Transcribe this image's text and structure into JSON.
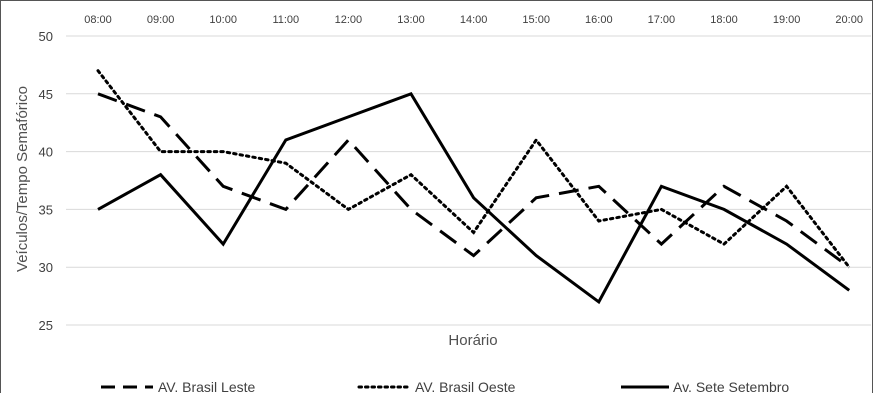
{
  "chart_data": {
    "type": "line",
    "categories": [
      "08:00",
      "09:00",
      "10:00",
      "11:00",
      "12:00",
      "13:00",
      "14:00",
      "15:00",
      "16:00",
      "17:00",
      "18:00",
      "19:00",
      "20:00"
    ],
    "series": [
      {
        "name": "AV. Brasil Leste",
        "style": "dashed",
        "color": "#000000",
        "values": [
          45,
          43,
          37,
          35,
          41,
          35,
          31,
          36,
          37,
          32,
          37,
          34,
          30
        ]
      },
      {
        "name": "AV. Brasil Oeste",
        "style": "dotted",
        "color": "#000000",
        "values": [
          47,
          40,
          40,
          39,
          35,
          38,
          33,
          41,
          34,
          35,
          32,
          37,
          30
        ]
      },
      {
        "name": "Av. Sete Setembro",
        "style": "solid",
        "color": "#000000",
        "values": [
          35,
          38,
          32,
          41,
          43,
          45,
          36,
          31,
          27,
          37,
          35,
          32,
          28
        ]
      }
    ],
    "xlabel": "Horário",
    "ylabel": "Veículos/Tempo Semafórico",
    "ylim": [
      25,
      50
    ],
    "yticks": [
      "25",
      "30",
      "35",
      "40",
      "45",
      "50"
    ],
    "x_tick_position": "top",
    "grid": true,
    "legend_position": "bottom"
  }
}
